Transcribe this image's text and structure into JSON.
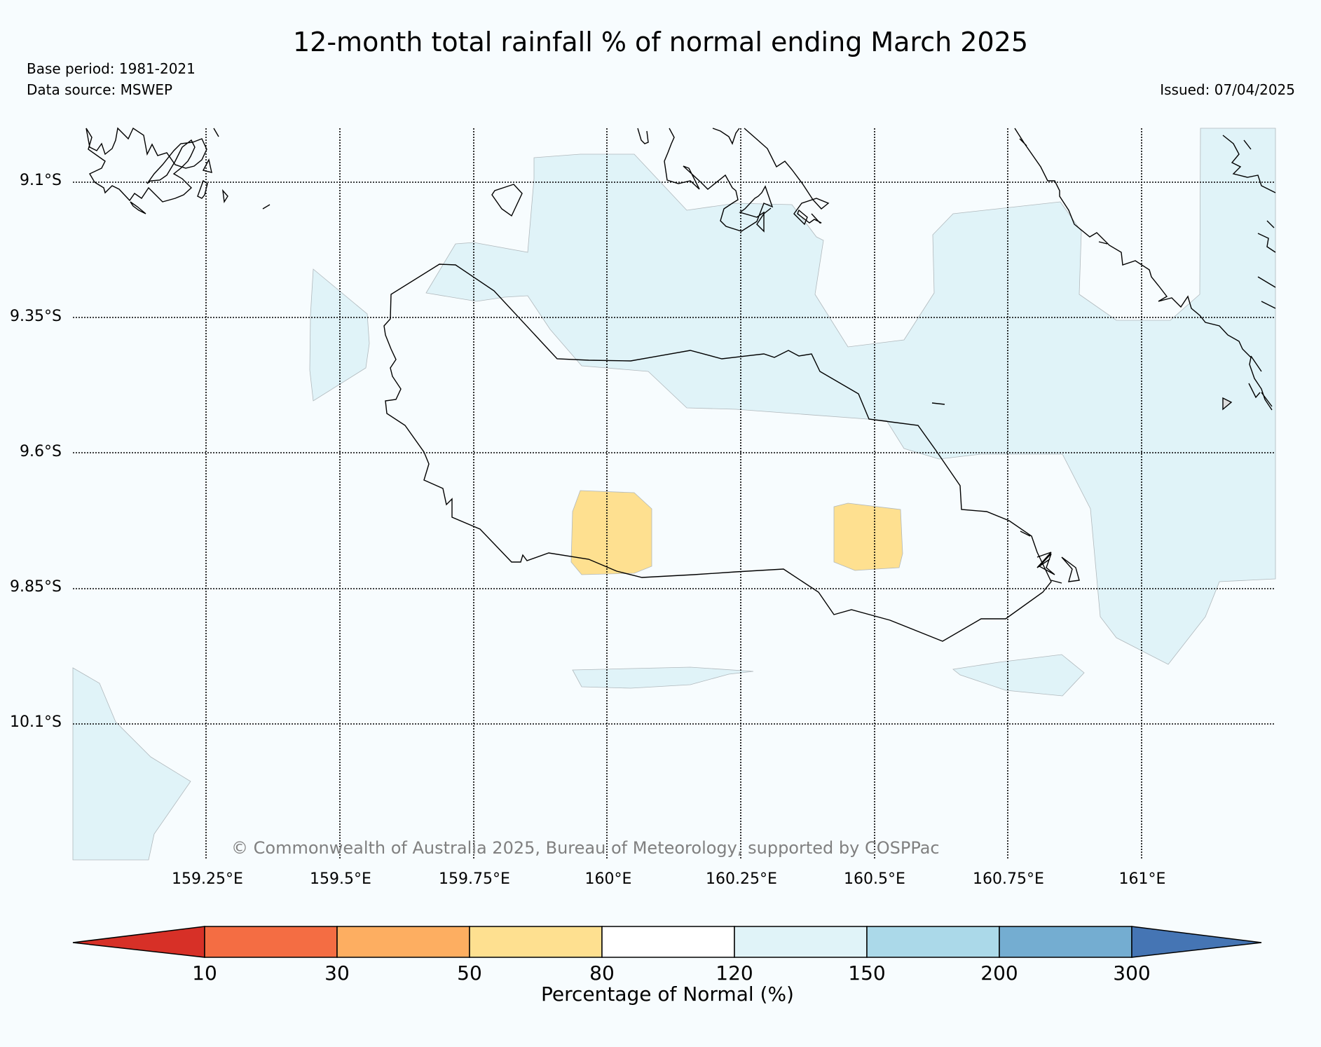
{
  "title": "12-month total rainfall % of normal ending March 2025",
  "base_period": "Base period: 1981-2021",
  "data_source": "Data source: MSWEP",
  "issued": "Issued: 07/04/2025",
  "copyright": "© Commonwealth of Australia 2025, Bureau of Meteorology, supported by COSPPac",
  "lat_labels": [
    "9.1°S",
    "9.35°S",
    "9.6°S",
    "9.85°S",
    "10.1°S"
  ],
  "lon_labels": [
    "159.25°E",
    "159.5°E",
    "159.75°E",
    "160°E",
    "160.25°E",
    "160.5°E",
    "160.75°E",
    "161°E"
  ],
  "colorbar": {
    "label": "Percentage of Normal (%)",
    "ticks": [
      "10",
      "30",
      "50",
      "80",
      "120",
      "150",
      "200",
      "300"
    ],
    "colors": [
      "#d73027",
      "#f46d43",
      "#fdae61",
      "#fee090",
      "#ffffff",
      "#e0f3f8",
      "#abd9e9",
      "#74add1",
      "#4575b4"
    ]
  },
  "legend_colors": {
    "above_normal": "#e0f3f8",
    "below_normal": "#fee090"
  }
}
